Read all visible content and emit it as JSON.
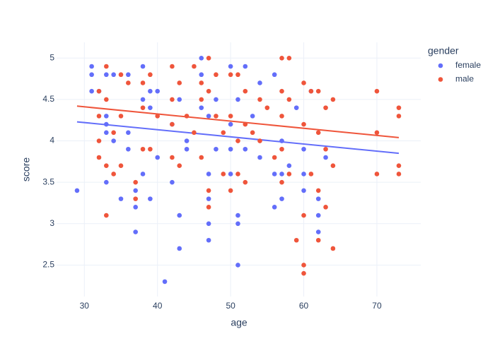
{
  "chart_data": {
    "type": "scatter",
    "x_label": "age",
    "y_label": "score",
    "xlim": [
      26.2,
      76
    ],
    "ylim": [
      2.12,
      5.19
    ],
    "xticks": [
      30,
      40,
      50,
      60,
      70
    ],
    "yticks": [
      2.5,
      3,
      3.5,
      4,
      4.5,
      5
    ],
    "grid": true,
    "legend_title": "gender",
    "legend_position": "right",
    "series": [
      {
        "name": "female",
        "color": "#636efa",
        "x": [
          29,
          31,
          31,
          31,
          32,
          33,
          33,
          33,
          33,
          33,
          34,
          34,
          35,
          36,
          36,
          36,
          37,
          37,
          37,
          38,
          38,
          38,
          39,
          39,
          39,
          40,
          40,
          41,
          42,
          42,
          43,
          43,
          43,
          44,
          44,
          46,
          46,
          46,
          47,
          47,
          47,
          47,
          47,
          48,
          48,
          50,
          50,
          50,
          50,
          51,
          51,
          51,
          51,
          52,
          52,
          53,
          54,
          54,
          56,
          56,
          56,
          57,
          57,
          57,
          58,
          59,
          60,
          60,
          60,
          61,
          62,
          62,
          62,
          63
        ],
        "y": [
          3.4,
          4.9,
          4.8,
          4.6,
          4.6,
          4.8,
          4.3,
          4.2,
          4.1,
          3.5,
          4.8,
          4.0,
          3.3,
          4.8,
          4.1,
          3.9,
          3.2,
          2.9,
          3.4,
          4.9,
          4.5,
          3.6,
          4.6,
          4.4,
          3.3,
          4.6,
          3.8,
          2.3,
          4.2,
          3.5,
          4.5,
          3.1,
          2.7,
          3.9,
          4.0,
          4.8,
          5.0,
          4.4,
          4.3,
          3.6,
          3.3,
          3.0,
          2.8,
          4.5,
          3.9,
          4.9,
          4.2,
          3.9,
          3.6,
          3.1,
          3.0,
          2.5,
          4.5,
          4.9,
          3.9,
          4.3,
          3.8,
          4.7,
          4.8,
          3.6,
          3.2,
          4.0,
          3.6,
          3.3,
          3.7,
          4.4,
          3.9,
          3.6,
          3.4,
          4.6,
          3.3,
          3.1,
          2.9,
          3.8
        ],
        "trend": {
          "x": [
            29,
            73
          ],
          "y": [
            4.23,
            3.85
          ]
        }
      },
      {
        "name": "male",
        "color": "#EF553B",
        "x": [
          32,
          32,
          32,
          32,
          33,
          33,
          33,
          33,
          34,
          34,
          35,
          35,
          35,
          36,
          37,
          37,
          38,
          38,
          38,
          39,
          39,
          40,
          42,
          42,
          42,
          42,
          43,
          43,
          44,
          45,
          45,
          46,
          46,
          46,
          47,
          47,
          47,
          47,
          48,
          48,
          49,
          49,
          50,
          50,
          50,
          51,
          51,
          51,
          52,
          52,
          52,
          53,
          54,
          54,
          55,
          56,
          57,
          57,
          57,
          57,
          57,
          58,
          58,
          58,
          59,
          60,
          60,
          60,
          60,
          60,
          61,
          61,
          62,
          62,
          62,
          62,
          63,
          63,
          63,
          64,
          64,
          64,
          70,
          70,
          70,
          73,
          73,
          73,
          73
        ],
        "y": [
          4.6,
          4.3,
          4.0,
          3.8,
          4.9,
          4.5,
          3.7,
          3.1,
          4.1,
          3.6,
          4.8,
          4.3,
          3.7,
          4.7,
          3.5,
          3.3,
          4.7,
          4.4,
          3.9,
          4.8,
          3.9,
          4.3,
          4.9,
          4.5,
          4.2,
          3.8,
          4.7,
          3.7,
          4.3,
          4.9,
          4.1,
          4.7,
          4.5,
          3.8,
          5.0,
          4.6,
          3.4,
          3.2,
          4.8,
          4.3,
          4.1,
          3.6,
          4.8,
          4.3,
          3.4,
          4.8,
          4.0,
          3.6,
          4.6,
          4.2,
          3.5,
          4.1,
          4.5,
          4.0,
          4.4,
          3.8,
          5.0,
          4.6,
          4.3,
          3.9,
          3.5,
          5.0,
          4.5,
          3.6,
          2.8,
          4.7,
          4.2,
          3.1,
          2.5,
          2.4,
          4.6,
          3.6,
          4.6,
          4.1,
          3.4,
          2.8,
          4.4,
          3.9,
          3.2,
          4.5,
          3.7,
          2.7,
          4.6,
          4.1,
          3.6,
          4.4,
          4.3,
          3.7,
          3.6
        ],
        "trend": {
          "x": [
            29,
            73
          ],
          "y": [
            4.42,
            4.04
          ]
        }
      }
    ]
  }
}
